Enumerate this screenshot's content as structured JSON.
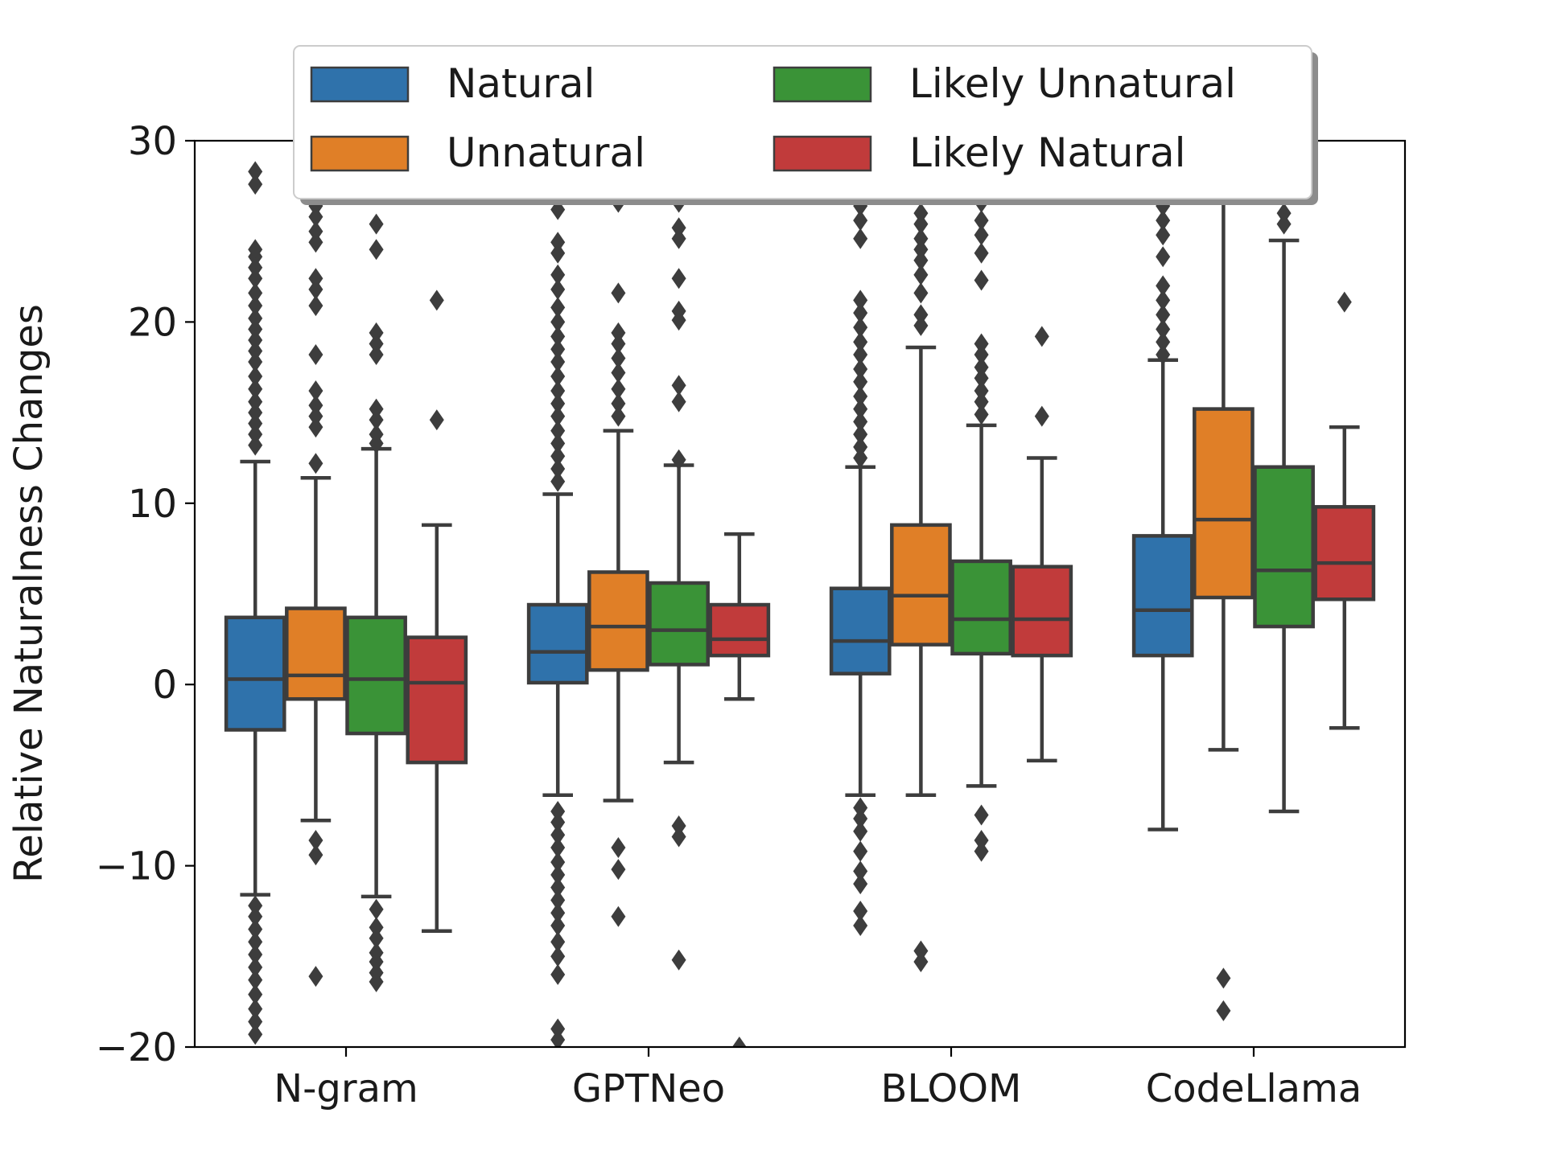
{
  "chart_data": {
    "type": "boxplot",
    "title": "",
    "xlabel": "",
    "ylabel": "Relative Naturalness Changes",
    "ylim": [
      -20,
      30
    ],
    "yticks": [
      -20,
      -10,
      0,
      10,
      20,
      30
    ],
    "ytick_labels": [
      "−20",
      "−10",
      "0",
      "10",
      "20",
      "30"
    ],
    "categories": [
      "N-gram",
      "GPTNeo",
      "BLOOM",
      "CodeLlama"
    ],
    "legend": {
      "placement": "top-center",
      "columns": 2
    },
    "colors": {
      "Natural": "#2f72ab",
      "Unnatural": "#e07f27",
      "Likely Unnatural": "#3a9337",
      "Likely Natural": "#c13b3b",
      "outline": "#3d3d3d"
    },
    "series": [
      {
        "name": "Natural",
        "boxes": [
          {
            "q1": -2.5,
            "median": 0.3,
            "q3": 3.7,
            "whisker_low": -11.6,
            "whisker_high": 12.3,
            "outliers": [
              28.3,
              27.6,
              24.0,
              23.6,
              23.0,
              22.4,
              21.6,
              20.9,
              20.2,
              19.6,
              19.0,
              18.4,
              17.8,
              17.0,
              16.3,
              15.6,
              15.0,
              14.4,
              13.8,
              13.2,
              -12.2,
              -12.8,
              -13.5,
              -14.2,
              -14.9,
              -15.6,
              -16.3,
              -17.1,
              -17.9,
              -18.6,
              -19.3
            ]
          },
          {
            "q1": 0.1,
            "median": 1.8,
            "q3": 4.4,
            "whisker_low": -6.1,
            "whisker_high": 10.5,
            "outliers": [
              26.2,
              24.4,
              23.8,
              22.6,
              21.8,
              20.8,
              20.0,
              19.2,
              18.5,
              17.8,
              17.0,
              16.2,
              15.5,
              14.8,
              14.0,
              13.3,
              12.6,
              11.9,
              11.2,
              -7.0,
              -7.6,
              -8.3,
              -9.0,
              -9.8,
              -10.5,
              -11.2,
              -11.9,
              -12.6,
              -13.3,
              -14.2,
              -15.0,
              -16.0,
              -19.0,
              -19.6
            ]
          },
          {
            "q1": 0.6,
            "median": 2.4,
            "q3": 5.3,
            "whisker_low": -6.1,
            "whisker_high": 12.0,
            "outliers": [
              26.4,
              25.6,
              24.6,
              21.2,
              20.5,
              19.7,
              18.9,
              18.2,
              17.4,
              16.7,
              15.9,
              15.2,
              14.5,
              13.8,
              13.1,
              12.5,
              -6.8,
              -7.4,
              -8.1,
              -9.2,
              -10.3,
              -11.0,
              -12.5,
              -13.3
            ]
          },
          {
            "q1": 1.6,
            "median": 4.1,
            "q3": 8.2,
            "whisker_low": -8.0,
            "whisker_high": 17.9,
            "outliers": [
              26.4,
              25.6,
              24.8,
              23.6,
              22.0,
              21.2,
              20.4,
              19.6,
              18.9,
              18.2
            ]
          }
        ]
      },
      {
        "name": "Unnatural",
        "boxes": [
          {
            "q1": -0.8,
            "median": 0.5,
            "q3": 4.2,
            "whisker_low": -7.5,
            "whisker_high": 11.4,
            "outliers": [
              26.4,
              25.8,
              25.0,
              24.4,
              22.4,
              21.8,
              20.9,
              18.2,
              16.2,
              15.4,
              14.8,
              14.2,
              12.2,
              -8.6,
              -9.4,
              -16.1
            ]
          },
          {
            "q1": 0.8,
            "median": 3.2,
            "q3": 6.2,
            "whisker_low": -6.4,
            "whisker_high": 14.0,
            "outliers": [
              26.6,
              21.6,
              19.4,
              18.8,
              18.0,
              17.2,
              16.3,
              15.5,
              14.8,
              -9.0,
              -10.2,
              -12.8
            ]
          },
          {
            "q1": 2.2,
            "median": 4.9,
            "q3": 8.8,
            "whisker_low": -6.1,
            "whisker_high": 18.6,
            "outliers": [
              26.0,
              25.4,
              24.6,
              24.0,
              23.4,
              22.6,
              21.6,
              20.4,
              19.8,
              -14.7,
              -15.3
            ]
          },
          {
            "q1": 4.8,
            "median": 9.1,
            "q3": 15.2,
            "whisker_low": -3.6,
            "whisker_high": 30.0,
            "outliers": [
              -16.2,
              -18.0
            ]
          }
        ]
      },
      {
        "name": "Likely Unnatural",
        "boxes": [
          {
            "q1": -2.7,
            "median": 0.3,
            "q3": 3.7,
            "whisker_low": -11.7,
            "whisker_high": 13.0,
            "outliers": [
              25.4,
              24.0,
              19.4,
              18.8,
              18.2,
              15.2,
              14.6,
              13.8,
              13.3,
              -12.4,
              -13.4,
              -14.0,
              -14.8,
              -15.3,
              -15.9,
              -16.4
            ]
          },
          {
            "q1": 1.1,
            "median": 3.0,
            "q3": 5.6,
            "whisker_low": -4.3,
            "whisker_high": 12.1,
            "outliers": [
              26.6,
              25.2,
              24.6,
              22.4,
              20.6,
              20.1,
              16.5,
              15.6,
              12.4,
              -7.8,
              -8.4,
              -15.2
            ]
          },
          {
            "q1": 1.7,
            "median": 3.6,
            "q3": 6.8,
            "whisker_low": -5.6,
            "whisker_high": 14.3,
            "outliers": [
              26.6,
              25.6,
              24.8,
              23.8,
              22.3,
              18.8,
              18.2,
              17.5,
              16.9,
              16.2,
              15.6,
              14.9,
              -7.2,
              -8.6,
              -9.2
            ]
          },
          {
            "q1": 3.2,
            "median": 6.3,
            "q3": 12.0,
            "whisker_low": -7.0,
            "whisker_high": 24.5,
            "outliers": [
              26.0,
              25.4
            ]
          }
        ]
      },
      {
        "name": "Likely Natural",
        "boxes": [
          {
            "q1": -4.3,
            "median": 0.1,
            "q3": 2.6,
            "whisker_low": -13.6,
            "whisker_high": 8.8,
            "outliers": [
              21.2,
              14.6
            ]
          },
          {
            "q1": 1.6,
            "median": 2.5,
            "q3": 4.4,
            "whisker_low": -0.8,
            "whisker_high": 8.3,
            "outliers": [
              -20.0
            ]
          },
          {
            "q1": 1.6,
            "median": 3.6,
            "q3": 6.5,
            "whisker_low": -4.2,
            "whisker_high": 12.5,
            "outliers": [
              19.2,
              14.8
            ]
          },
          {
            "q1": 4.7,
            "median": 6.7,
            "q3": 9.8,
            "whisker_low": -2.4,
            "whisker_high": 14.2,
            "outliers": [
              21.1
            ]
          }
        ]
      }
    ]
  }
}
